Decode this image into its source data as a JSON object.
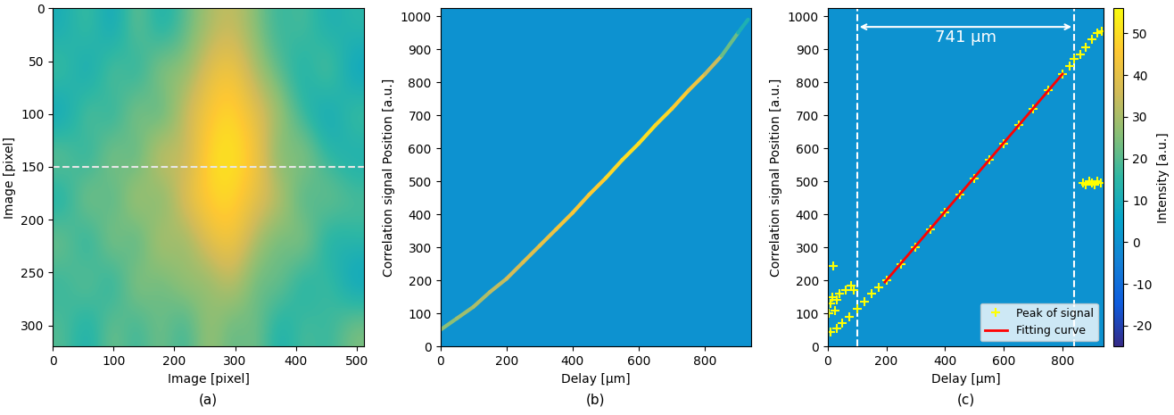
{
  "chart_data": [
    {
      "type": "heatmap",
      "panel_label": "(a)",
      "x_label": "Image [pixel]",
      "y_label": "Image [pixel]",
      "xlim": [
        0,
        512
      ],
      "ylim": [
        320,
        0
      ],
      "xticks": [
        0,
        100,
        200,
        300,
        400,
        500
      ],
      "yticks": [
        0,
        50,
        100,
        150,
        200,
        250,
        300
      ],
      "hline": 150,
      "cells": [
        [
          10,
          20,
          5,
          25,
          10,
          20,
          30,
          35,
          25,
          15,
          20,
          10,
          15
        ],
        [
          20,
          5,
          25,
          10,
          30,
          25,
          40,
          45,
          30,
          20,
          10,
          25,
          5
        ],
        [
          5,
          25,
          10,
          30,
          15,
          35,
          45,
          50,
          40,
          30,
          15,
          5,
          20
        ],
        [
          25,
          10,
          30,
          15,
          40,
          30,
          50,
          52,
          45,
          20,
          30,
          15,
          10
        ],
        [
          10,
          30,
          15,
          35,
          20,
          40,
          48,
          50,
          40,
          35,
          15,
          25,
          20
        ],
        [
          25,
          10,
          30,
          15,
          35,
          25,
          40,
          45,
          30,
          20,
          30,
          10,
          15
        ],
        [
          15,
          25,
          10,
          30,
          20,
          30,
          25,
          35,
          20,
          25,
          10,
          20,
          5
        ],
        [
          20,
          10,
          25,
          15,
          25,
          15,
          30,
          20,
          25,
          10,
          20,
          15,
          25
        ]
      ]
    },
    {
      "type": "ridge",
      "panel_label": "(b)",
      "x_label": "Delay [μm]",
      "y_label": "Correlation signal Position [a.u.]",
      "xlim": [
        0,
        940
      ],
      "ylim": [
        0,
        1024
      ],
      "xticks": [
        0,
        200,
        400,
        600,
        800
      ],
      "yticks": [
        0,
        100,
        200,
        300,
        400,
        500,
        600,
        700,
        800,
        900,
        1000
      ],
      "background": 0,
      "x": [
        0,
        50,
        100,
        150,
        200,
        250,
        300,
        350,
        400,
        450,
        500,
        550,
        600,
        650,
        700,
        750,
        800,
        850,
        900,
        930
      ],
      "y": [
        50,
        85,
        120,
        165,
        205,
        255,
        305,
        355,
        405,
        460,
        510,
        565,
        615,
        670,
        720,
        775,
        825,
        880,
        950,
        990
      ],
      "intensity": [
        25,
        28,
        30,
        32,
        35,
        38,
        40,
        42,
        45,
        45,
        48,
        50,
        50,
        50,
        48,
        45,
        40,
        30,
        15,
        8
      ]
    },
    {
      "type": "scatter",
      "panel_label": "(c)",
      "x_label": "Delay [μm]",
      "y_label": "Correlation signal Position [a.u.]",
      "xlim": [
        0,
        940
      ],
      "ylim": [
        0,
        1024
      ],
      "xticks": [
        0,
        200,
        400,
        600,
        800
      ],
      "yticks": [
        0,
        100,
        200,
        300,
        400,
        500,
        600,
        700,
        800,
        900,
        1000
      ],
      "background": 0,
      "dimension": {
        "from": 100,
        "to": 840,
        "label": "741 μm"
      },
      "legend": "lower right",
      "series": [
        {
          "name": "Peak of signal",
          "color": "#ffff00",
          "marker": "plus",
          "line_style": "none",
          "x": [
            10,
            30,
            50,
            75,
            100,
            125,
            150,
            175,
            200,
            250,
            300,
            350,
            400,
            450,
            500,
            550,
            600,
            650,
            700,
            750,
            800,
            825,
            840,
            860,
            880,
            900,
            920,
            935,
            5,
            10,
            15,
            20,
            25,
            30,
            40,
            60,
            80,
            90,
            870,
            880,
            890,
            900,
            910,
            920,
            930
          ],
          "y": [
            45,
            55,
            70,
            90,
            115,
            135,
            160,
            180,
            200,
            250,
            300,
            355,
            405,
            460,
            510,
            565,
            615,
            670,
            720,
            775,
            825,
            850,
            870,
            885,
            905,
            930,
            950,
            955,
            100,
            130,
            150,
            245,
            110,
            140,
            160,
            170,
            185,
            170,
            495,
            490,
            500,
            495,
            490,
            500,
            495
          ]
        },
        {
          "name": "Fitting curve",
          "color": "#ff0000",
          "line_style": "solid",
          "x": [
            195,
            800
          ],
          "y": [
            195,
            825
          ]
        }
      ]
    },
    {
      "type": "colorbar",
      "label": "Intensity [a.u.]",
      "range": [
        -25,
        56
      ],
      "ticks": [
        -20,
        -10,
        0,
        10,
        20,
        30,
        40,
        50
      ]
    }
  ]
}
